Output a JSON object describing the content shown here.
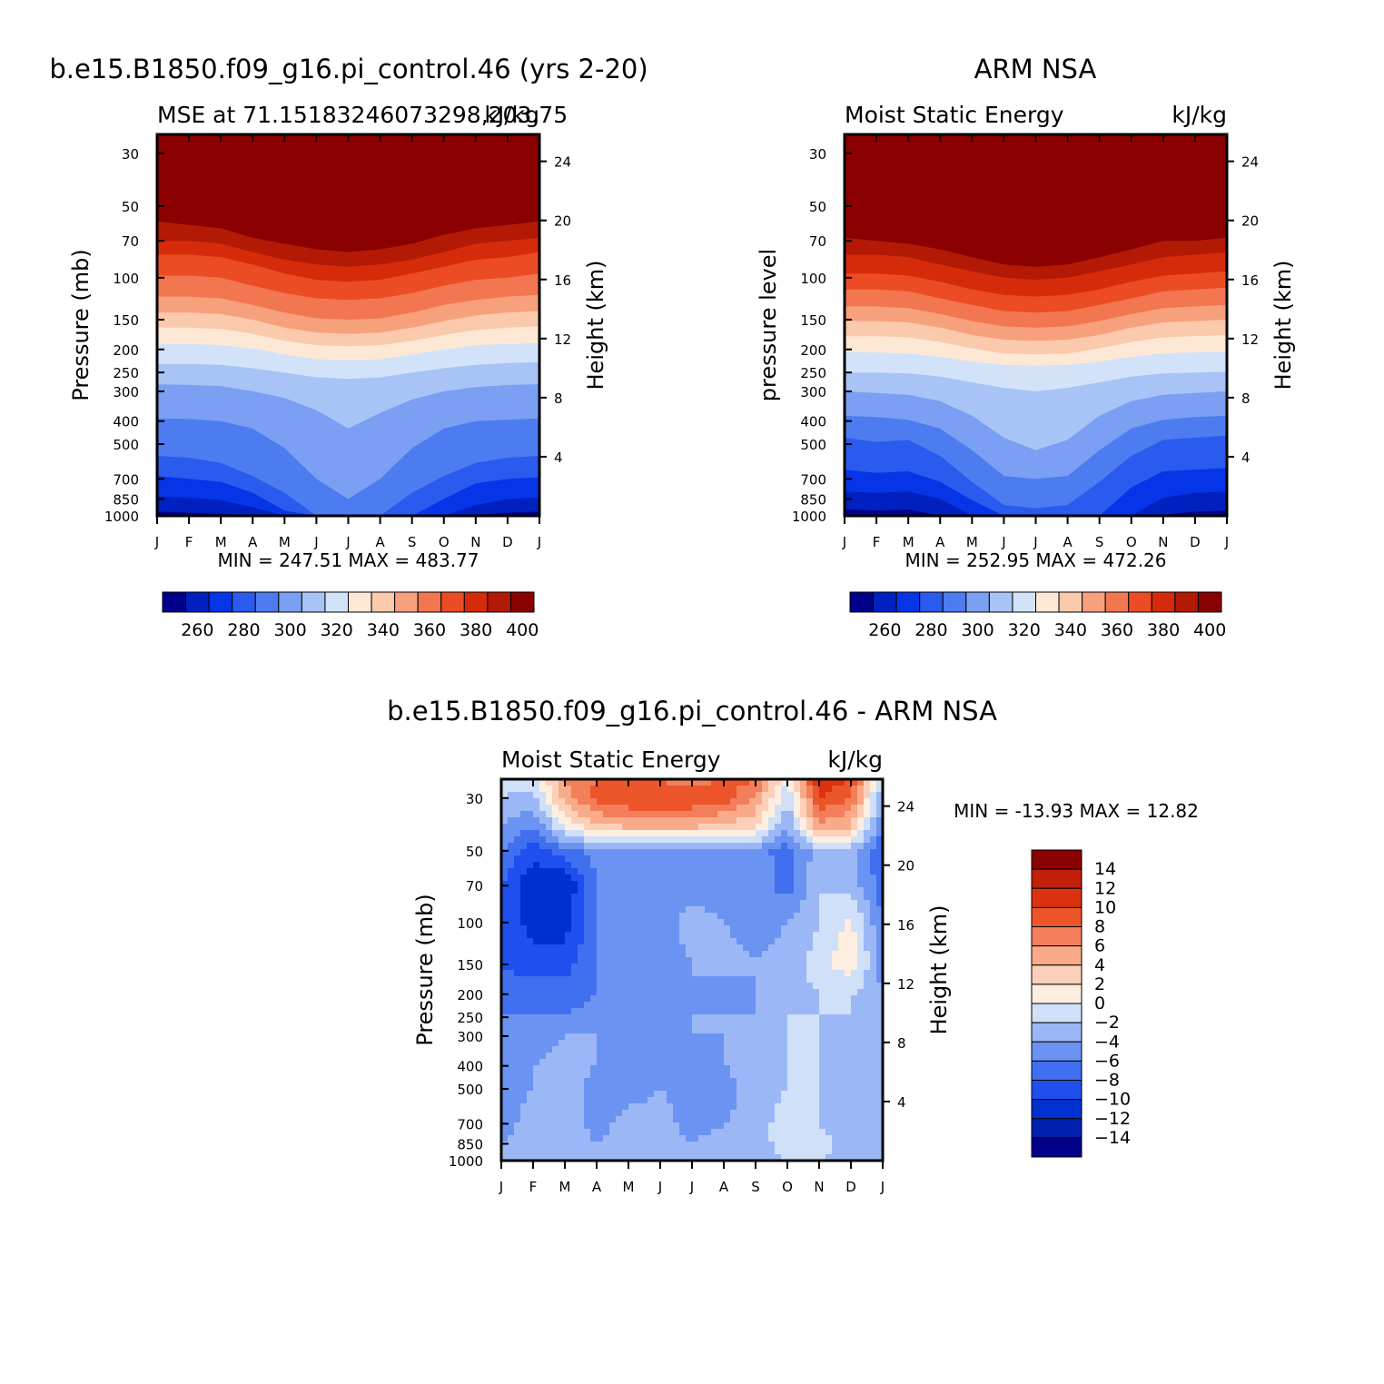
{
  "figure": {
    "top_left_title": "b.e15.B1850.f09_g16.pi_control.46 (yrs 2-20)",
    "top_right_title": "ARM NSA",
    "bottom_title": "b.e15.B1850.f09_g16.pi_control.46 - ARM NSA"
  },
  "chart_data": [
    {
      "id": "model",
      "type": "heatmap",
      "subtitle_left": "MSE at 71.15183246073298,203.75",
      "subtitle_right": "kJ/kg",
      "ylabel": "Pressure (mb)",
      "ylabel_right": "Height (km)",
      "x_ticks": [
        "J",
        "F",
        "M",
        "A",
        "M",
        "J",
        "J",
        "A",
        "S",
        "O",
        "N",
        "D",
        "J"
      ],
      "pressure_ticks": [
        30,
        50,
        70,
        100,
        150,
        200,
        250,
        300,
        400,
        500,
        700,
        850,
        1000
      ],
      "height_ticks": [
        4,
        8,
        12,
        16,
        20,
        24
      ],
      "stats": "MIN = 247.51 MAX = 483.77",
      "colorbar_levels": [
        250,
        260,
        270,
        280,
        290,
        300,
        310,
        320,
        330,
        340,
        350,
        360,
        370,
        380,
        390,
        400
      ],
      "colorbar_labels": [
        "260",
        "280",
        "300",
        "320",
        "340",
        "360",
        "380",
        "400"
      ],
      "boundaries": [
        {
          "level": 400,
          "p": [
            58,
            60,
            62,
            68,
            72,
            76,
            78,
            76,
            72,
            66,
            62,
            60,
            58
          ]
        },
        {
          "level": 390,
          "p": [
            70,
            70,
            72,
            78,
            84,
            88,
            90,
            88,
            84,
            78,
            72,
            70,
            68
          ]
        },
        {
          "level": 380,
          "p": [
            80,
            80,
            82,
            88,
            96,
            102,
            104,
            102,
            96,
            90,
            84,
            82,
            78
          ]
        },
        {
          "level": 370,
          "p": [
            98,
            98,
            100,
            108,
            116,
            122,
            124,
            122,
            116,
            108,
            102,
            100,
            96
          ]
        },
        {
          "level": 360,
          "p": [
            120,
            120,
            122,
            130,
            140,
            148,
            150,
            148,
            140,
            130,
            124,
            120,
            118
          ]
        },
        {
          "level": 350,
          "p": [
            140,
            140,
            142,
            150,
            162,
            170,
            172,
            170,
            162,
            152,
            144,
            140,
            138
          ]
        },
        {
          "level": 340,
          "p": [
            162,
            162,
            164,
            172,
            184,
            192,
            194,
            192,
            184,
            174,
            166,
            162,
            160
          ]
        },
        {
          "level": 330,
          "p": [
            190,
            190,
            192,
            198,
            210,
            220,
            222,
            220,
            210,
            200,
            192,
            190,
            188
          ]
        },
        {
          "level": 320,
          "p": [
            230,
            230,
            232,
            240,
            250,
            262,
            266,
            262,
            250,
            240,
            232,
            228,
            226
          ]
        },
        {
          "level": 310,
          "p": [
            280,
            282,
            285,
            300,
            320,
            360,
            430,
            370,
            325,
            300,
            288,
            282,
            280
          ]
        },
        {
          "level": 300,
          "p": [
            390,
            392,
            400,
            430,
            520,
            700,
            850,
            700,
            520,
            430,
            400,
            395,
            390
          ]
        },
        {
          "level": 290,
          "p": [
            560,
            570,
            600,
            680,
            800,
            1000,
            1000,
            1000,
            800,
            680,
            600,
            570,
            560
          ]
        },
        {
          "level": 280,
          "p": [
            680,
            700,
            720,
            800,
            950,
            1000,
            1000,
            1000,
            1000,
            850,
            730,
            700,
            690
          ]
        },
        {
          "level": 270,
          "p": [
            830,
            840,
            860,
            920,
            1000,
            1000,
            1000,
            1000,
            1000,
            1000,
            900,
            850,
            840
          ]
        },
        {
          "level": 260,
          "p": [
            960,
            970,
            980,
            1000,
            1000,
            1000,
            1000,
            1000,
            1000,
            1000,
            990,
            970,
            960
          ]
        }
      ]
    },
    {
      "id": "obs",
      "type": "heatmap",
      "subtitle_left": "Moist Static Energy",
      "subtitle_right": "kJ/kg",
      "ylabel": "pressure level",
      "ylabel_right": "Height (km)",
      "x_ticks": [
        "J",
        "F",
        "M",
        "A",
        "M",
        "J",
        "J",
        "A",
        "S",
        "O",
        "N",
        "D",
        "J"
      ],
      "pressure_ticks": [
        30,
        50,
        70,
        100,
        150,
        200,
        250,
        300,
        400,
        500,
        700,
        850,
        1000
      ],
      "height_ticks": [
        4,
        8,
        12,
        16,
        20,
        24
      ],
      "stats": "MIN = 252.95 MAX = 472.26",
      "colorbar_levels": [
        250,
        260,
        270,
        280,
        290,
        300,
        310,
        320,
        330,
        340,
        350,
        360,
        370,
        380,
        390,
        400
      ],
      "colorbar_labels": [
        "260",
        "280",
        "300",
        "320",
        "340",
        "360",
        "380",
        "400"
      ],
      "boundaries": [
        {
          "level": 400,
          "p": [
            68,
            70,
            72,
            76,
            82,
            88,
            90,
            88,
            82,
            76,
            70,
            70,
            68
          ]
        },
        {
          "level": 390,
          "p": [
            80,
            80,
            82,
            88,
            94,
            100,
            102,
            100,
            94,
            88,
            82,
            80,
            78
          ]
        },
        {
          "level": 380,
          "p": [
            96,
            96,
            98,
            104,
            112,
            118,
            120,
            118,
            112,
            104,
            98,
            96,
            94
          ]
        },
        {
          "level": 370,
          "p": [
            112,
            112,
            114,
            122,
            130,
            138,
            140,
            138,
            130,
            122,
            114,
            112,
            110
          ]
        },
        {
          "level": 360,
          "p": [
            132,
            132,
            134,
            142,
            152,
            160,
            162,
            160,
            152,
            142,
            134,
            132,
            130
          ]
        },
        {
          "level": 350,
          "p": [
            152,
            152,
            154,
            162,
            174,
            182,
            184,
            182,
            174,
            162,
            154,
            152,
            150
          ]
        },
        {
          "level": 340,
          "p": [
            176,
            176,
            178,
            186,
            198,
            208,
            210,
            208,
            198,
            186,
            178,
            176,
            174
          ]
        },
        {
          "level": 330,
          "p": [
            205,
            206,
            208,
            215,
            225,
            232,
            234,
            232,
            225,
            215,
            208,
            206,
            204
          ]
        },
        {
          "level": 320,
          "p": [
            250,
            250,
            252,
            260,
            275,
            290,
            300,
            290,
            275,
            260,
            252,
            250,
            248
          ]
        },
        {
          "level": 310,
          "p": [
            300,
            305,
            310,
            330,
            380,
            470,
            530,
            480,
            380,
            330,
            310,
            305,
            300
          ]
        },
        {
          "level": 300,
          "p": [
            380,
            385,
            395,
            430,
            530,
            680,
            700,
            680,
            530,
            430,
            395,
            385,
            380
          ]
        },
        {
          "level": 290,
          "p": [
            470,
            490,
            480,
            560,
            720,
            900,
            930,
            900,
            720,
            560,
            480,
            470,
            460
          ]
        },
        {
          "level": 280,
          "p": [
            640,
            660,
            650,
            720,
            860,
            1000,
            1000,
            1000,
            1000,
            760,
            650,
            640,
            630
          ]
        },
        {
          "level": 270,
          "p": [
            790,
            800,
            790,
            850,
            1000,
            1000,
            1000,
            1000,
            1000,
            1000,
            840,
            800,
            790
          ]
        },
        {
          "level": 260,
          "p": [
            940,
            950,
            940,
            1000,
            1000,
            1000,
            1000,
            1000,
            1000,
            1000,
            990,
            960,
            950
          ]
        }
      ]
    },
    {
      "id": "diff",
      "type": "heatmap",
      "subtitle_left": "Moist Static Energy",
      "subtitle_right": "kJ/kg",
      "ylabel": "Pressure (mb)",
      "ylabel_right": "Height (km)",
      "x_ticks": [
        "J",
        "F",
        "M",
        "A",
        "M",
        "J",
        "J",
        "A",
        "S",
        "O",
        "N",
        "D",
        "J"
      ],
      "pressure_ticks": [
        30,
        50,
        70,
        100,
        150,
        200,
        250,
        300,
        400,
        500,
        700,
        850,
        1000
      ],
      "height_ticks": [
        4,
        8,
        12,
        16,
        20,
        24
      ],
      "stats": "MIN = -13.93 MAX = 12.82",
      "colorbar_levels": [
        -16,
        -14,
        -12,
        -10,
        -8,
        -6,
        -4,
        -2,
        0,
        2,
        4,
        6,
        8,
        10,
        12,
        14,
        16
      ],
      "colorbar_labels": [
        "14",
        "12",
        "10",
        "8",
        "6",
        "4",
        "2",
        "0",
        "-2",
        "-4",
        "-6",
        "-8",
        "-10",
        "-12",
        "-14"
      ],
      "grid_months": [
        1,
        2,
        3,
        4,
        5,
        6,
        7,
        8,
        9,
        10,
        11,
        12,
        13
      ],
      "grid_pressure": [
        25,
        30,
        40,
        50,
        70,
        100,
        150,
        200,
        250,
        300,
        400,
        500,
        700,
        850,
        1000
      ],
      "grid_values": [
        [
          -1,
          -1,
          6,
          8,
          10,
          8,
          6,
          9,
          8,
          0,
          12,
          10,
          -2
        ],
        [
          -2,
          -3,
          5,
          9,
          10,
          10,
          10,
          9,
          6,
          -2,
          10,
          8,
          -4
        ],
        [
          -4,
          -6,
          0,
          3,
          4,
          4,
          4,
          3,
          2,
          -4,
          5,
          4,
          -6
        ],
        [
          -6,
          -9,
          -7,
          -5,
          -5,
          -5,
          -5,
          -5,
          -5,
          -7,
          -3,
          -3,
          -8
        ],
        [
          -8,
          -12,
          -12,
          -6,
          -5,
          -5,
          -5,
          -5,
          -5,
          -7,
          -2,
          -3,
          -7
        ],
        [
          -8,
          -11,
          -11,
          -6,
          -5,
          -5,
          -3,
          -4,
          -5,
          -4,
          -2,
          0.5,
          -6
        ],
        [
          -8,
          -9,
          -9,
          -6,
          -5,
          -5,
          -4,
          -3,
          -4,
          -3,
          -1,
          1.5,
          -5
        ],
        [
          -7,
          -7,
          -7,
          -6,
          -5,
          -5,
          -4,
          -5,
          -4,
          -3,
          -2,
          -2,
          -4
        ],
        [
          -6,
          -6,
          -6,
          -5,
          -5,
          -4,
          -4,
          -4,
          -4,
          -2,
          -2,
          -2,
          -4
        ],
        [
          -5,
          -5,
          -4,
          -4,
          -4,
          -5,
          -4,
          -4,
          -3,
          -2,
          -2,
          -3,
          -4
        ],
        [
          -4,
          -4,
          -3,
          -4,
          -5,
          -6,
          -5,
          -4,
          -3,
          -2,
          -2,
          -3,
          -4
        ],
        [
          -5,
          -4,
          -3,
          -5,
          -5,
          -4,
          -5,
          -5,
          -3,
          -2,
          -2,
          -4,
          -4
        ],
        [
          -5,
          -3,
          -2,
          -5,
          -3,
          -3,
          -5,
          -4,
          -3,
          -1,
          -2,
          -3,
          -4
        ],
        [
          -4,
          -3,
          -2,
          -4,
          -3,
          -3,
          -4,
          -3,
          -3,
          -1,
          -1,
          -3,
          -3
        ],
        [
          -3,
          -2,
          -2,
          -3,
          -2,
          -3,
          -3,
          -3,
          -3,
          -2,
          -2,
          -3,
          -3
        ]
      ]
    }
  ]
}
